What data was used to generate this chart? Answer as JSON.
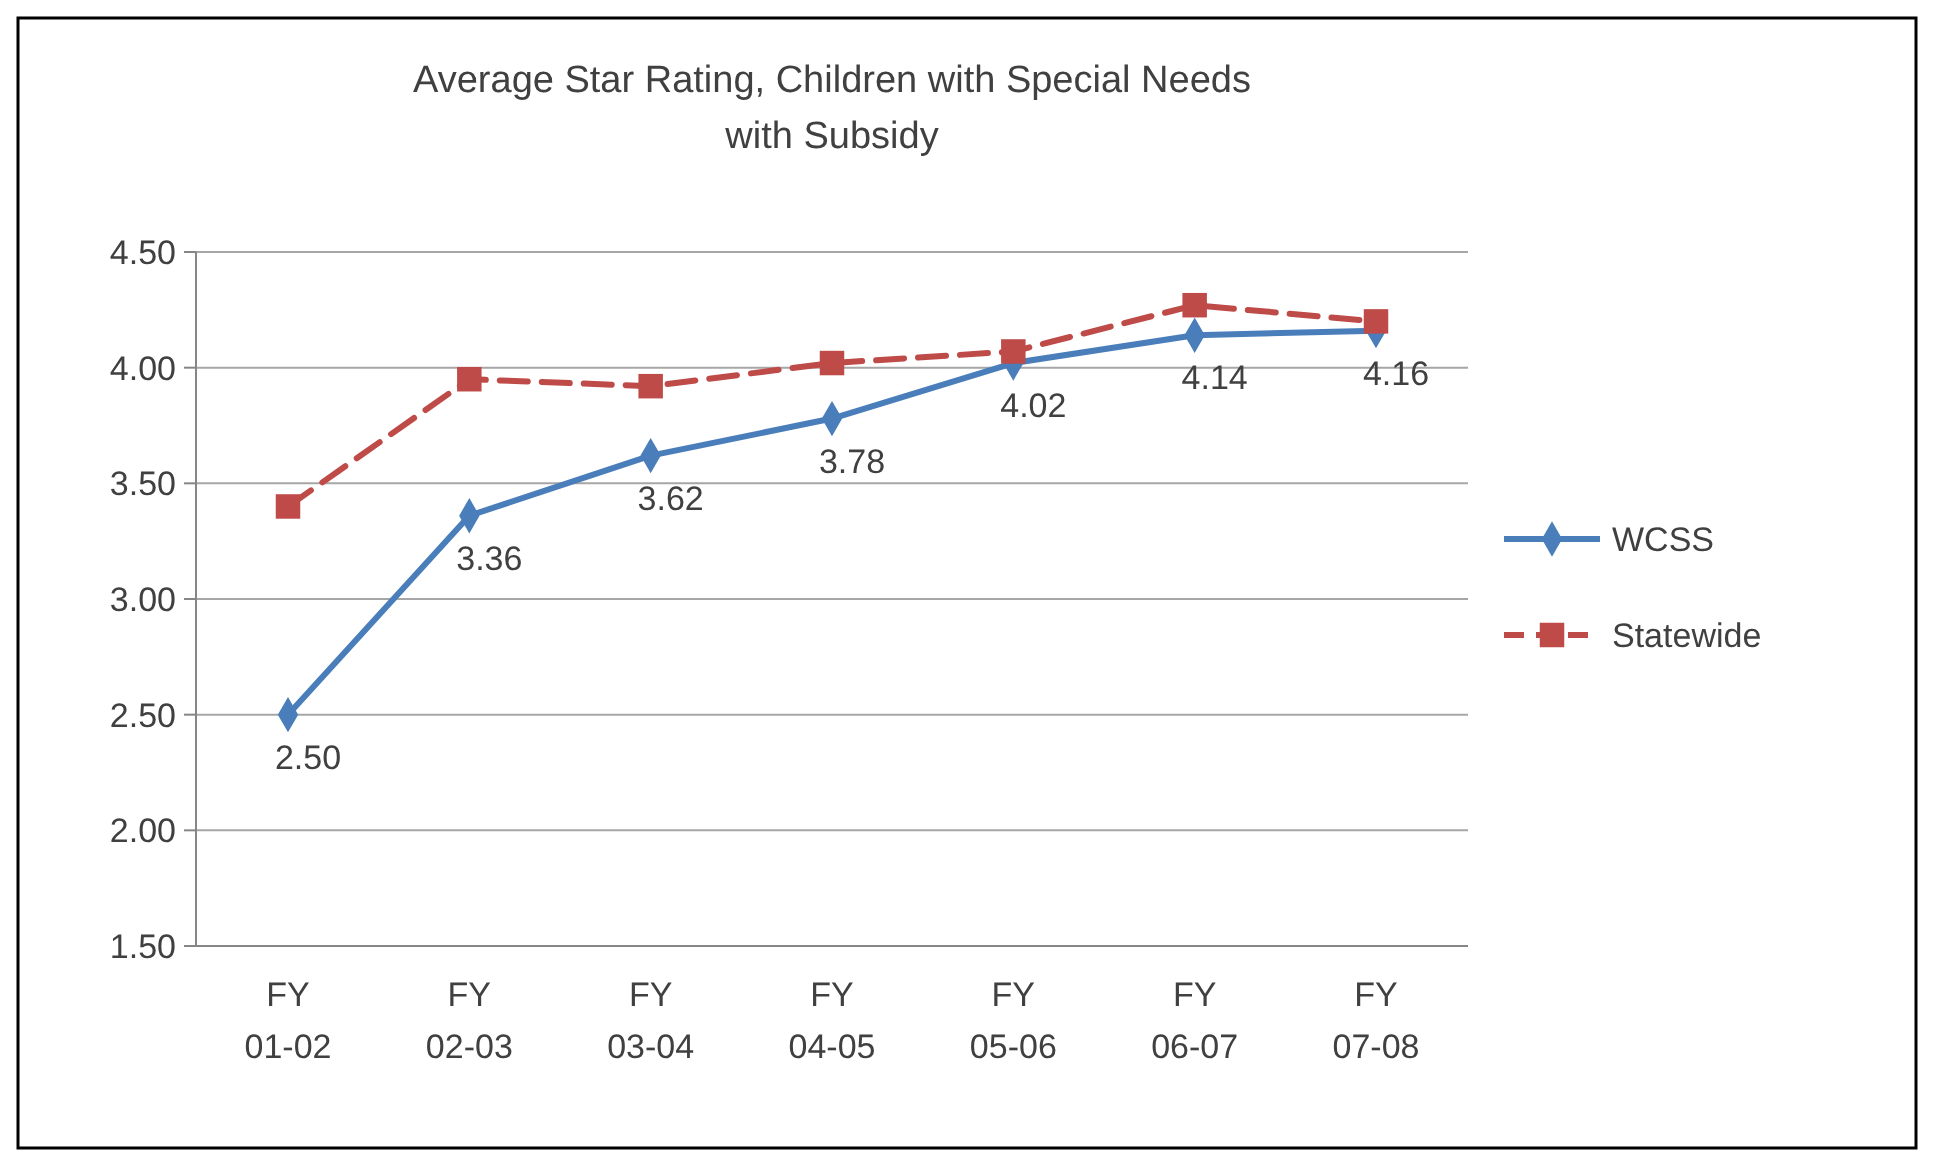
{
  "chart_data": {
    "type": "line",
    "title": "Average Star Rating, Children with Special Needs with Subsidy",
    "categories": [
      "FY 01-02",
      "FY 02-03",
      "FY 03-04",
      "FY 04-05",
      "FY 05-06",
      "FY 06-07",
      "FY 07-08"
    ],
    "series": [
      {
        "name": "WCSS",
        "color": "#4a7ebb",
        "marker": "diamond",
        "line_style": "solid",
        "values": [
          2.5,
          3.36,
          3.62,
          3.78,
          4.02,
          4.14,
          4.16
        ],
        "value_labels": [
          "2.50",
          "3.36",
          "3.62",
          "3.78",
          "4.02",
          "4.14",
          "4.16"
        ]
      },
      {
        "name": "Statewide",
        "color": "#be4b48",
        "marker": "square",
        "line_style": "dashed",
        "values": [
          3.4,
          3.95,
          3.92,
          4.02,
          4.07,
          4.27,
          4.2
        ]
      }
    ],
    "ylim": [
      1.5,
      4.5
    ],
    "yticks": [
      {
        "value": 1.5,
        "label": "1.50"
      },
      {
        "value": 2,
        "label": "2.00"
      },
      {
        "value": 2.5,
        "label": "2.50"
      },
      {
        "value": 3,
        "label": "3.00"
      },
      {
        "value": 3.5,
        "label": "3.50"
      },
      {
        "value": 4,
        "label": "4.00"
      },
      {
        "value": 4.5,
        "label": "4.50"
      }
    ],
    "grid": "y",
    "legend": "right"
  }
}
